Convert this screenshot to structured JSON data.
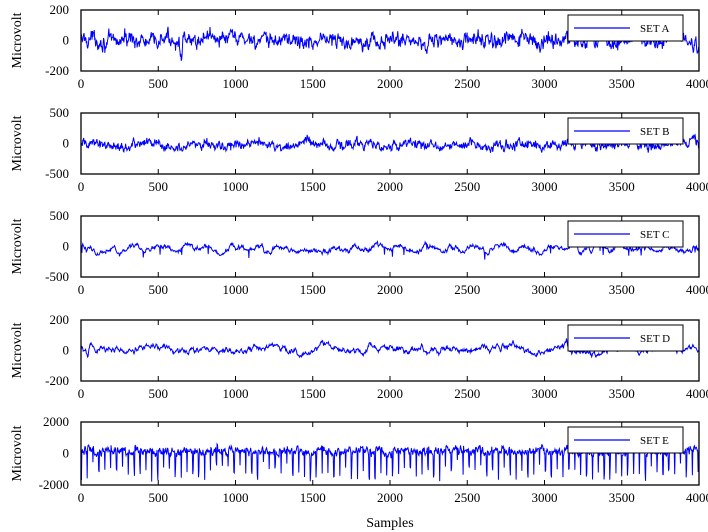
{
  "chart_data": [
    {
      "type": "line",
      "title": "",
      "legend": "SET A",
      "xlabel": "",
      "ylabel": "Microvolt",
      "xlim": [
        0,
        4000
      ],
      "ylim": [
        -200,
        200
      ],
      "xticks": [
        0,
        500,
        1000,
        1500,
        2000,
        2500,
        3000,
        3500,
        4000
      ],
      "yticks": [
        -200,
        0,
        200
      ],
      "legend_position": "upper right",
      "grid": false,
      "series": [
        {
          "name": "SET A",
          "color": "#0000ff",
          "approx_range": [
            -200,
            150
          ],
          "approx_mean": 0,
          "description": "noisy EEG, large dip near sample 650 to -200"
        }
      ]
    },
    {
      "type": "line",
      "title": "",
      "legend": "SET B",
      "xlabel": "",
      "ylabel": "Microvolt",
      "xlim": [
        0,
        4000
      ],
      "ylim": [
        -500,
        500
      ],
      "xticks": [
        0,
        500,
        1000,
        1500,
        2000,
        2500,
        3000,
        3500,
        4000
      ],
      "yticks": [
        -500,
        0,
        500
      ],
      "legend_position": "upper right",
      "grid": false,
      "series": [
        {
          "name": "SET B",
          "color": "#0000ff",
          "approx_range": [
            -150,
            200
          ],
          "approx_mean": 0,
          "description": "noisy EEG, peak near sample 3950"
        }
      ]
    },
    {
      "type": "line",
      "title": "",
      "legend": "SET C",
      "xlabel": "",
      "ylabel": "Microvolt",
      "xlim": [
        0,
        4000
      ],
      "ylim": [
        -500,
        500
      ],
      "xticks": [
        0,
        500,
        1000,
        1500,
        2000,
        2500,
        3000,
        3500,
        4000
      ],
      "yticks": [
        -500,
        0,
        500
      ],
      "legend_position": "upper right",
      "grid": false,
      "series": [
        {
          "name": "SET C",
          "color": "#0000ff",
          "approx_range": [
            -250,
            100
          ],
          "approx_mean": -30,
          "description": "smoother EEG oscillation"
        }
      ]
    },
    {
      "type": "line",
      "title": "",
      "legend": "SET D",
      "xlabel": "",
      "ylabel": "Microvolt",
      "xlim": [
        0,
        4000
      ],
      "ylim": [
        -200,
        200
      ],
      "xticks": [
        0,
        500,
        1000,
        1500,
        2000,
        2500,
        3000,
        3500,
        4000
      ],
      "yticks": [
        -200,
        0,
        200
      ],
      "legend_position": "upper right",
      "grid": false,
      "series": [
        {
          "name": "SET D",
          "color": "#0000ff",
          "approx_range": [
            -90,
            110
          ],
          "approx_mean": 10,
          "description": "smooth EEG, dip near sample 40"
        }
      ]
    },
    {
      "type": "line",
      "title": "",
      "legend": "SET E",
      "xlabel": "Samples",
      "ylabel": "Microvolt",
      "xlim": [
        0,
        4000
      ],
      "ylim": [
        -2000,
        2000
      ],
      "xticks": [
        0,
        500,
        1000,
        1500,
        2000,
        2500,
        3000,
        3500,
        4000
      ],
      "yticks": [
        -2000,
        0,
        2000
      ],
      "legend_position": "upper right",
      "grid": false,
      "series": [
        {
          "name": "SET E",
          "color": "#0000ff",
          "approx_range": [
            -1900,
            900
          ],
          "approx_mean": 0,
          "description": "seizure EEG with periodic large negative spikes"
        }
      ]
    }
  ],
  "figure": {
    "xlabel": "Samples",
    "line_color": "#0000ff",
    "axis_color": "#000000"
  }
}
